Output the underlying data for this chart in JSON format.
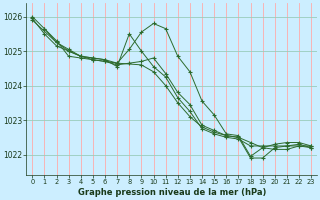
{
  "background_color": "#cceeff",
  "grid_color_h": "#99ccbb",
  "grid_color_v": "#ffaaaa",
  "line_color": "#2d6b2d",
  "xlabel": "Graphe pression niveau de la mer (hPa)",
  "xlim": [
    -0.5,
    23.5
  ],
  "ylim": [
    1021.4,
    1026.4
  ],
  "yticks": [
    1022,
    1023,
    1024,
    1025,
    1026
  ],
  "xticks": [
    0,
    1,
    2,
    3,
    4,
    5,
    6,
    7,
    8,
    9,
    10,
    11,
    12,
    13,
    14,
    15,
    16,
    17,
    18,
    19,
    20,
    21,
    22,
    23
  ],
  "series": [
    {
      "x": [
        0,
        1,
        2,
        3,
        4,
        5,
        6,
        7,
        8,
        9,
        10,
        11,
        12,
        13,
        14,
        15,
        16,
        17,
        18,
        19,
        20,
        21,
        22,
        23
      ],
      "y": [
        1026.0,
        1025.65,
        1025.3,
        1024.85,
        1024.8,
        1024.75,
        1024.7,
        1024.65,
        1025.05,
        1025.55,
        1025.8,
        1025.65,
        1024.85,
        1024.4,
        1023.55,
        1023.15,
        1022.6,
        1022.55,
        1021.95,
        1022.2,
        1022.3,
        1022.35,
        1022.35,
        1022.25
      ]
    },
    {
      "x": [
        1,
        2,
        3,
        4,
        5,
        6,
        7,
        8,
        9,
        10,
        11,
        12,
        13,
        14,
        15,
        16,
        17,
        18,
        19,
        20,
        21,
        22,
        23
      ],
      "y": [
        1025.65,
        1025.25,
        1025.05,
        1024.85,
        1024.75,
        1024.7,
        1024.6,
        1024.65,
        1024.7,
        1024.8,
        1024.35,
        1023.8,
        1023.45,
        1022.85,
        1022.7,
        1022.55,
        1022.5,
        1021.9,
        1021.9,
        1022.2,
        1022.25,
        1022.3,
        1022.2
      ]
    },
    {
      "x": [
        0,
        1,
        2,
        3,
        4,
        5,
        6,
        7,
        8,
        9,
        10,
        11,
        12,
        13,
        14,
        15,
        16,
        17,
        18,
        19,
        20,
        21,
        22,
        23
      ],
      "y": [
        1025.95,
        1025.5,
        1025.15,
        1025.0,
        1024.85,
        1024.8,
        1024.75,
        1024.55,
        1025.5,
        1025.0,
        1024.55,
        1024.25,
        1023.65,
        1023.25,
        1022.75,
        1022.6,
        1022.5,
        1022.45,
        1022.25,
        1022.25,
        1022.25,
        1022.25,
        1022.25,
        1022.25
      ]
    },
    {
      "x": [
        0,
        2,
        3,
        4,
        5,
        6,
        7,
        9,
        10,
        11,
        12,
        13,
        14,
        15,
        16,
        17,
        18,
        19,
        20,
        21,
        22,
        23
      ],
      "y": [
        1025.9,
        1025.25,
        1025.0,
        1024.85,
        1024.8,
        1024.75,
        1024.65,
        1024.6,
        1024.4,
        1024.0,
        1023.5,
        1023.1,
        1022.8,
        1022.65,
        1022.55,
        1022.5,
        1022.35,
        1022.2,
        1022.15,
        1022.15,
        1022.25,
        1022.2
      ]
    }
  ]
}
